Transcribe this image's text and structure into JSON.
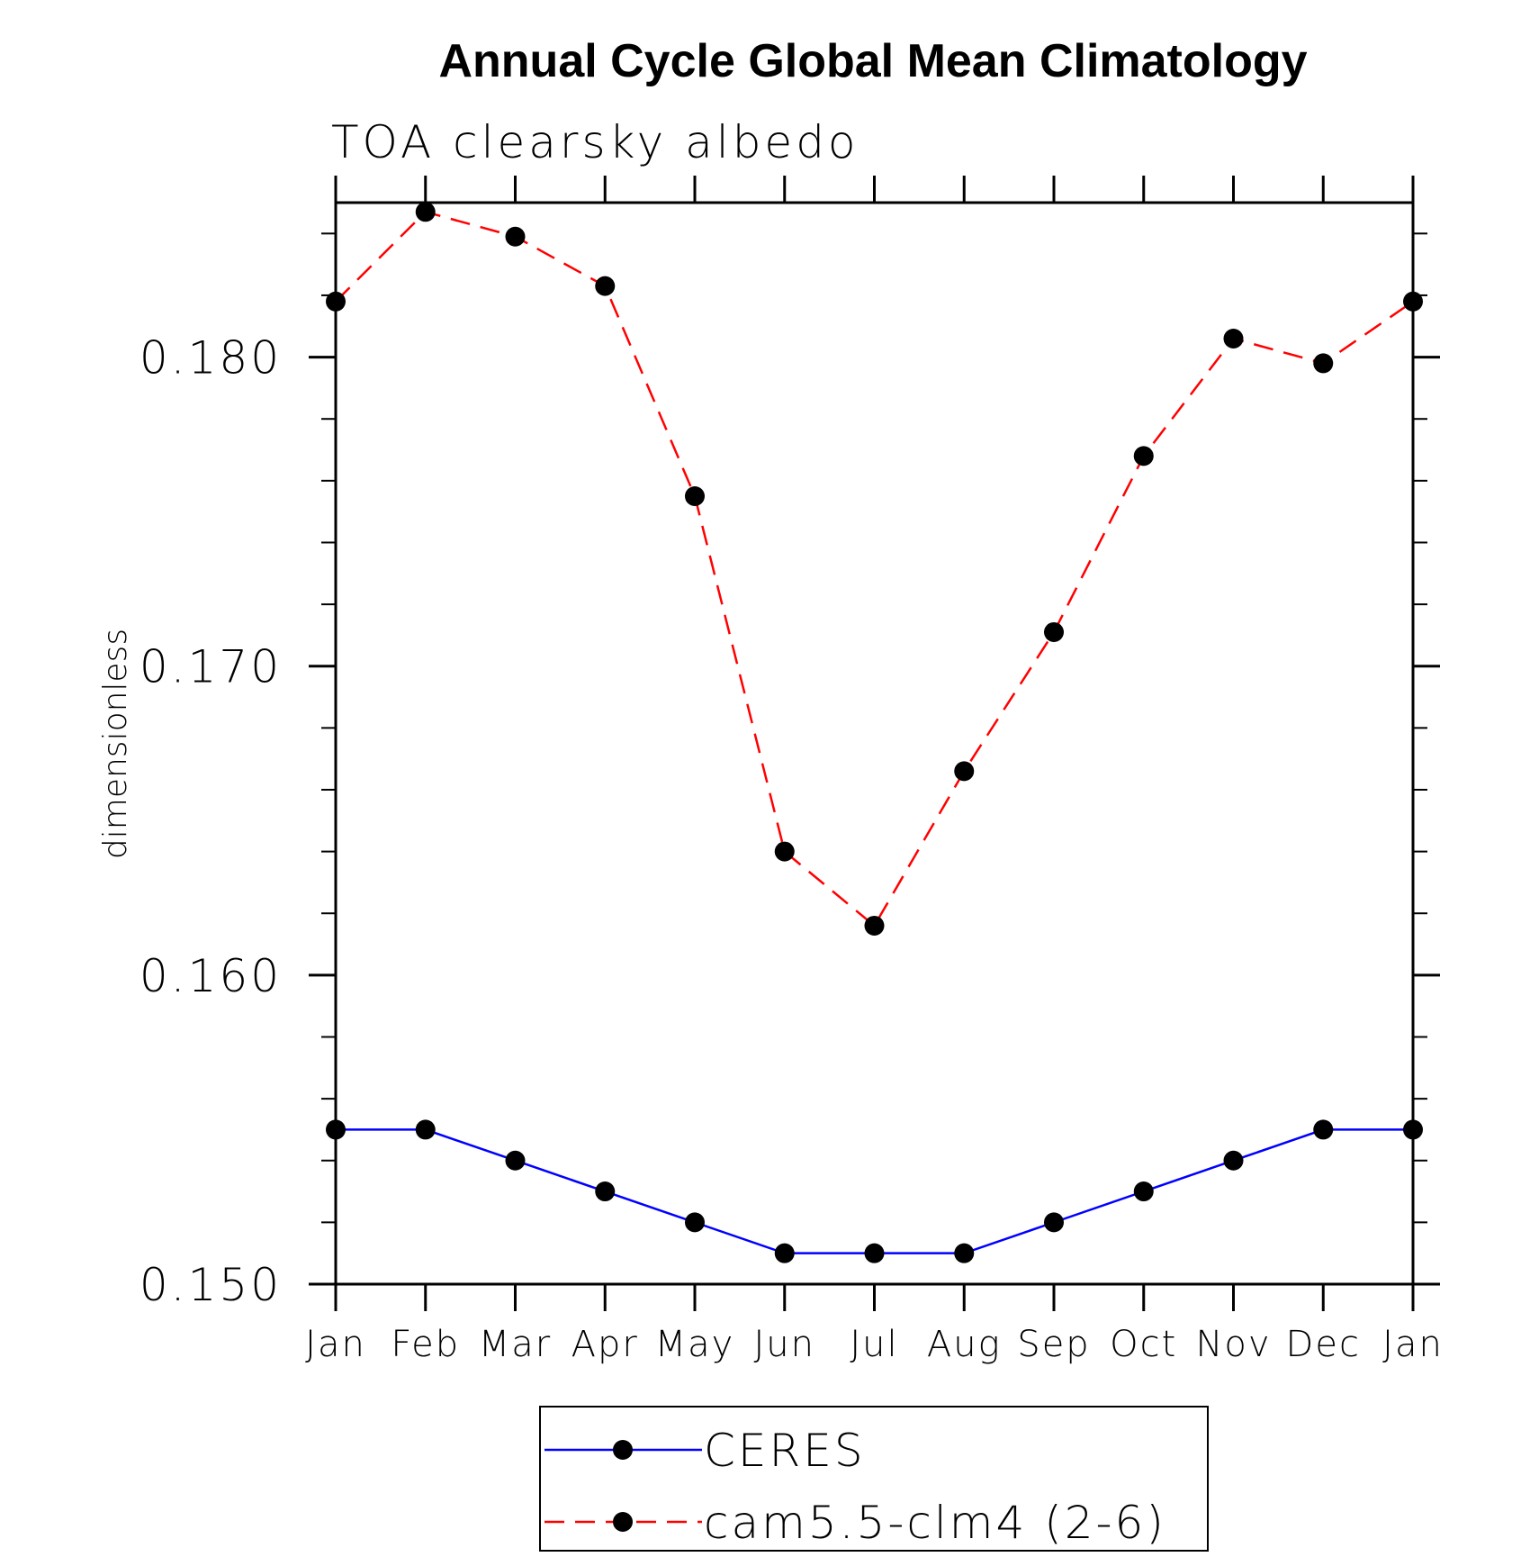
{
  "chart_data": {
    "type": "line",
    "title": "Annual Cycle Global Mean Climatology",
    "subtitle": "TOA clearsky albedo",
    "xlabel": "",
    "ylabel": "dimensionless",
    "categories": [
      "Jan",
      "Feb",
      "Mar",
      "Apr",
      "May",
      "Jun",
      "Jul",
      "Aug",
      "Sep",
      "Oct",
      "Nov",
      "Dec",
      "Jan"
    ],
    "ylim": [
      0.15,
      0.185
    ],
    "yticks": [
      0.15,
      0.16,
      0.17,
      0.18
    ],
    "ytick_labels": [
      "0.150",
      "0.160",
      "0.170",
      "0.180"
    ],
    "y_minor_step": 0.002,
    "series": [
      {
        "name": "CERES",
        "color": "#0000ff",
        "dash": "solid",
        "marker": "circle",
        "values": [
          0.155,
          0.155,
          0.154,
          0.153,
          0.152,
          0.151,
          0.151,
          0.151,
          0.152,
          0.153,
          0.154,
          0.155,
          0.155
        ]
      },
      {
        "name": "cam5.5-clm4 (2-6)",
        "color": "#ff0000",
        "dash": "dashed",
        "marker": "circle",
        "values": [
          0.1818,
          0.1847,
          0.1839,
          0.1823,
          0.1755,
          0.164,
          0.1616,
          0.1666,
          0.1711,
          0.1768,
          0.1806,
          0.1798,
          0.1818
        ]
      }
    ],
    "legend_position": "bottom-center"
  }
}
